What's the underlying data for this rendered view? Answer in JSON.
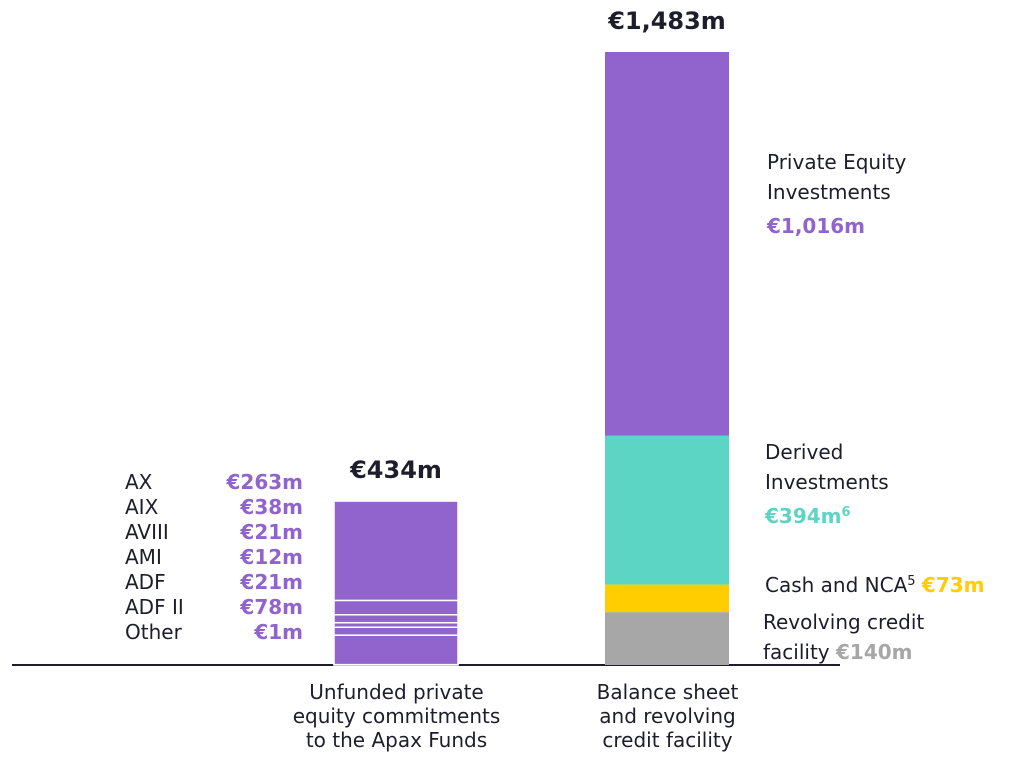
{
  "chart_data": {
    "type": "stacked_bar",
    "bars": [
      {
        "category": "Unfunded private equity commitments to the Apax Funds",
        "total": 434,
        "total_label": "€434m",
        "segments": [
          {
            "name": "Other",
            "value": 1,
            "value_label": "€1m",
            "color": "#9063cd"
          },
          {
            "name": "ADF II",
            "value": 78,
            "value_label": "€78m",
            "color": "#9063cd"
          },
          {
            "name": "ADF",
            "value": 21,
            "value_label": "€21m",
            "color": "#9063cd"
          },
          {
            "name": "AMI",
            "value": 12,
            "value_label": "€12m",
            "color": "#9063cd"
          },
          {
            "name": "AVIII",
            "value": 21,
            "value_label": "€21m",
            "color": "#9063cd"
          },
          {
            "name": "AIX",
            "value": 38,
            "value_label": "€38m",
            "color": "#9063cd"
          },
          {
            "name": "AX",
            "value": 263,
            "value_label": "€263m",
            "color": "#9063cd"
          }
        ]
      },
      {
        "category": "Balance sheet and revolving credit facility",
        "total": 1483,
        "total_label": "€1,483m",
        "segments": [
          {
            "name": "Revolving credit facility",
            "value": 140,
            "value_label": "€140m",
            "color": "#a7a7a7"
          },
          {
            "name": "Cash and NCA",
            "footnote": "5",
            "value": 73,
            "value_label": "€73m",
            "color": "#ffcd00"
          },
          {
            "name": "Derived Investments",
            "value": 394,
            "value_label": "€394m",
            "value_footnote": "6",
            "color": "#5dd5c4"
          },
          {
            "name": "Private Equity Investments",
            "value": 1016,
            "value_label": "€1,016m",
            "color": "#9063cd"
          }
        ]
      }
    ]
  }
}
